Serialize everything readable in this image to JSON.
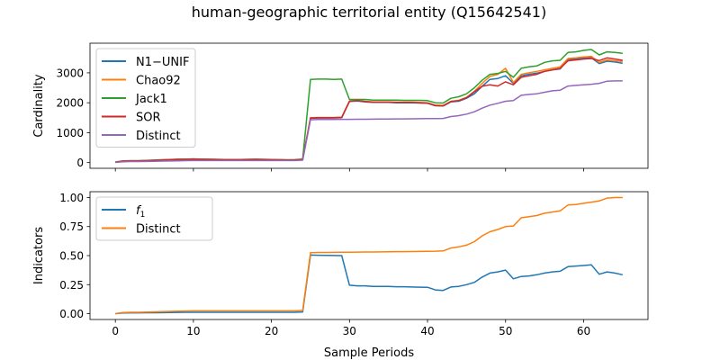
{
  "figure_title": "human-geographic territorial entity (Q15642541)",
  "colors": {
    "blue": "#1f77b4",
    "orange": "#ff7f0e",
    "green": "#2ca02c",
    "red": "#d62728",
    "purple": "#9467bd"
  },
  "chart_data": [
    {
      "type": "line",
      "panel": "top",
      "title": "human-geographic territorial entity (Q15642541)",
      "xlabel": "",
      "ylabel": "Cardinality",
      "xlim": [
        -3.25,
        68.25
      ],
      "ylim": [
        -190,
        3990
      ],
      "xticks": [
        0,
        10,
        20,
        30,
        40,
        50,
        60
      ],
      "xticklabels": [
        "",
        "",
        "",
        "",
        "",
        "",
        ""
      ],
      "yticks": [
        0,
        1000,
        2000,
        3000
      ],
      "yticklabels": [
        "0",
        "1000",
        "2000",
        "3000"
      ],
      "grid": false,
      "legend": "upper-left",
      "x": [
        0,
        1,
        2,
        3,
        4,
        5,
        6,
        7,
        8,
        9,
        10,
        11,
        12,
        13,
        14,
        15,
        16,
        17,
        18,
        19,
        20,
        21,
        22,
        23,
        24,
        25,
        26,
        27,
        28,
        29,
        30,
        31,
        32,
        33,
        34,
        35,
        36,
        37,
        38,
        39,
        40,
        41,
        42,
        43,
        44,
        45,
        46,
        47,
        48,
        49,
        50,
        51,
        52,
        53,
        54,
        55,
        56,
        57,
        58,
        59,
        60,
        61,
        62,
        63,
        64,
        65
      ],
      "series": [
        {
          "name": "N1−UNIF",
          "color": "#1f77b4",
          "values": [
            10,
            50,
            55,
            55,
            60,
            65,
            70,
            75,
            80,
            85,
            90,
            90,
            90,
            85,
            85,
            85,
            85,
            90,
            90,
            85,
            85,
            80,
            80,
            85,
            95,
            1480,
            1490,
            1490,
            1490,
            1500,
            2040,
            2060,
            2030,
            2010,
            2010,
            2010,
            2000,
            2000,
            2000,
            1990,
            1980,
            1900,
            1890,
            2030,
            2050,
            2150,
            2300,
            2550,
            2780,
            2810,
            2900,
            2650,
            2900,
            2950,
            2990,
            3050,
            3100,
            3130,
            3450,
            3460,
            3490,
            3500,
            3310,
            3390,
            3360,
            3320
          ]
        },
        {
          "name": "Chao92",
          "color": "#ff7f0e",
          "values": [
            10,
            55,
            60,
            60,
            70,
            80,
            90,
            100,
            110,
            115,
            120,
            115,
            110,
            105,
            100,
            100,
            100,
            105,
            110,
            105,
            100,
            95,
            90,
            95,
            110,
            1500,
            1510,
            1510,
            1510,
            1520,
            2060,
            2080,
            2050,
            2030,
            2030,
            2030,
            2020,
            2020,
            2020,
            2010,
            2000,
            1920,
            1910,
            2050,
            2080,
            2180,
            2380,
            2650,
            2880,
            2950,
            3150,
            2680,
            2950,
            3000,
            3050,
            3100,
            3150,
            3200,
            3480,
            3500,
            3530,
            3550,
            3350,
            3430,
            3400,
            3380
          ]
        },
        {
          "name": "Jack1",
          "color": "#2ca02c",
          "values": [
            20,
            60,
            65,
            65,
            75,
            85,
            95,
            105,
            115,
            120,
            125,
            120,
            115,
            110,
            105,
            105,
            105,
            110,
            115,
            110,
            105,
            100,
            95,
            100,
            120,
            2780,
            2790,
            2790,
            2780,
            2790,
            2110,
            2110,
            2110,
            2090,
            2090,
            2090,
            2090,
            2080,
            2080,
            2080,
            2070,
            2000,
            1990,
            2150,
            2200,
            2300,
            2500,
            2750,
            2950,
            2980,
            3050,
            2850,
            3150,
            3200,
            3230,
            3350,
            3400,
            3420,
            3680,
            3700,
            3750,
            3780,
            3600,
            3700,
            3680,
            3650
          ]
        },
        {
          "name": "SOR",
          "color": "#d62728",
          "values": [
            15,
            55,
            58,
            58,
            68,
            78,
            88,
            98,
            108,
            112,
            118,
            112,
            108,
            102,
            98,
            98,
            98,
            102,
            108,
            102,
            98,
            92,
            88,
            92,
            108,
            1490,
            1500,
            1500,
            1500,
            1510,
            2050,
            2070,
            2040,
            2020,
            2020,
            2020,
            2010,
            2010,
            2010,
            2000,
            1990,
            1910,
            1900,
            2040,
            2070,
            2170,
            2370,
            2550,
            2600,
            2560,
            2700,
            2600,
            2850,
            2900,
            2950,
            3050,
            3100,
            3150,
            3400,
            3430,
            3460,
            3480,
            3410,
            3500,
            3460,
            3420
          ]
        },
        {
          "name": "Distinct",
          "color": "#9467bd",
          "values": [
            5,
            30,
            35,
            35,
            40,
            45,
            50,
            55,
            60,
            65,
            70,
            70,
            70,
            70,
            70,
            70,
            70,
            70,
            70,
            70,
            70,
            70,
            70,
            70,
            80,
            1430,
            1440,
            1440,
            1440,
            1445,
            1445,
            1448,
            1450,
            1452,
            1455,
            1458,
            1460,
            1462,
            1465,
            1468,
            1470,
            1472,
            1475,
            1540,
            1570,
            1620,
            1700,
            1820,
            1920,
            1980,
            2050,
            2070,
            2250,
            2280,
            2300,
            2350,
            2400,
            2420,
            2560,
            2580,
            2600,
            2620,
            2650,
            2720,
            2730,
            2730
          ]
        }
      ]
    },
    {
      "type": "line",
      "panel": "bottom",
      "title": "",
      "xlabel": "Sample Periods",
      "ylabel": "Indicators",
      "xlim": [
        -3.25,
        68.25
      ],
      "ylim": [
        -0.05,
        1.05
      ],
      "xticks": [
        0,
        10,
        20,
        30,
        40,
        50,
        60
      ],
      "xticklabels": [
        "0",
        "10",
        "20",
        "30",
        "40",
        "50",
        "60"
      ],
      "yticks": [
        0,
        0.25,
        0.5,
        0.75,
        1.0
      ],
      "yticklabels": [
        "0.00",
        "0.25",
        "0.50",
        "0.75",
        "1.00"
      ],
      "grid": false,
      "legend": "upper-left",
      "x": [
        0,
        1,
        2,
        3,
        4,
        5,
        6,
        7,
        8,
        9,
        10,
        11,
        12,
        13,
        14,
        15,
        16,
        17,
        18,
        19,
        20,
        21,
        22,
        23,
        24,
        25,
        26,
        27,
        28,
        29,
        30,
        31,
        32,
        33,
        34,
        35,
        36,
        37,
        38,
        39,
        40,
        41,
        42,
        43,
        44,
        45,
        46,
        47,
        48,
        49,
        50,
        51,
        52,
        53,
        54,
        55,
        56,
        57,
        58,
        59,
        60,
        61,
        62,
        63,
        64,
        65
      ],
      "series": [
        {
          "name": "f₁",
          "legend_base": "f",
          "legend_sub": "1",
          "color": "#1f77b4",
          "values": [
            0.0,
            0.006,
            0.007,
            0.007,
            0.008,
            0.008,
            0.009,
            0.01,
            0.011,
            0.012,
            0.012,
            0.012,
            0.012,
            0.012,
            0.012,
            0.012,
            0.012,
            0.012,
            0.012,
            0.012,
            0.012,
            0.012,
            0.012,
            0.012,
            0.015,
            0.505,
            0.503,
            0.502,
            0.501,
            0.5,
            0.245,
            0.24,
            0.24,
            0.235,
            0.235,
            0.235,
            0.232,
            0.232,
            0.23,
            0.228,
            0.227,
            0.205,
            0.2,
            0.23,
            0.235,
            0.25,
            0.27,
            0.315,
            0.35,
            0.36,
            0.375,
            0.3,
            0.32,
            0.325,
            0.335,
            0.35,
            0.36,
            0.365,
            0.405,
            0.41,
            0.415,
            0.42,
            0.34,
            0.36,
            0.35,
            0.335
          ]
        },
        {
          "name": "Distinct",
          "color": "#ff7f0e",
          "values": [
            0.0,
            0.01,
            0.012,
            0.012,
            0.014,
            0.016,
            0.018,
            0.02,
            0.022,
            0.023,
            0.024,
            0.024,
            0.024,
            0.024,
            0.024,
            0.024,
            0.024,
            0.024,
            0.024,
            0.024,
            0.024,
            0.024,
            0.024,
            0.024,
            0.028,
            0.525,
            0.527,
            0.527,
            0.528,
            0.529,
            0.529,
            0.53,
            0.531,
            0.531,
            0.532,
            0.533,
            0.534,
            0.534,
            0.535,
            0.536,
            0.537,
            0.538,
            0.54,
            0.565,
            0.575,
            0.59,
            0.62,
            0.67,
            0.705,
            0.725,
            0.75,
            0.755,
            0.825,
            0.835,
            0.845,
            0.865,
            0.875,
            0.885,
            0.935,
            0.94,
            0.95,
            0.96,
            0.97,
            0.995,
            1.0,
            1.0
          ]
        }
      ]
    }
  ]
}
